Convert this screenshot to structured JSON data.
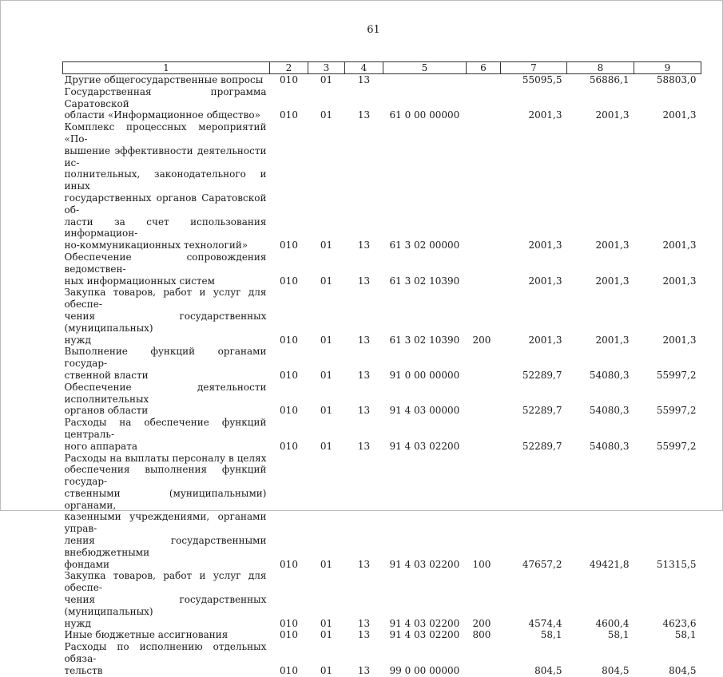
{
  "page_number": "61",
  "table": {
    "headers": [
      "1",
      "2",
      "3",
      "4",
      "5",
      "6",
      "7",
      "8",
      "9"
    ],
    "rows": [
      {
        "lines": [
          "Другие общегосударственные вопросы"
        ],
        "c2": "010",
        "c3": "01",
        "c4": "13",
        "c5": "",
        "c6": "",
        "c7": "55095,5",
        "c8": "56886,1",
        "c9": "58803,0"
      },
      {
        "lines": [
          "Государственная программа Саратовской",
          "области «Информационное общество»"
        ],
        "c2": "010",
        "c3": "01",
        "c4": "13",
        "c5": "61 0 00 00000",
        "c6": "",
        "c7": "2001,3",
        "c8": "2001,3",
        "c9": "2001,3"
      },
      {
        "lines": [
          "Комплекс процессных мероприятий «По-",
          "вышение эффективности деятельности ис-",
          "полнительных, законодательного и иных",
          "государственных органов Саратовской об-",
          "ласти за счет использования информацион-",
          "но-коммуникационных технологий»"
        ],
        "c2": "010",
        "c3": "01",
        "c4": "13",
        "c5": "61 3 02 00000",
        "c6": "",
        "c7": "2001,3",
        "c8": "2001,3",
        "c9": "2001,3"
      },
      {
        "lines": [
          "Обеспечение сопровождения ведомствен-",
          "ных информационных систем"
        ],
        "c2": "010",
        "c3": "01",
        "c4": "13",
        "c5": "61 3 02 10390",
        "c6": "",
        "c7": "2001,3",
        "c8": "2001,3",
        "c9": "2001,3"
      },
      {
        "lines": [
          "Закупка товаров, работ и услуг для обеспе-",
          "чения государственных (муниципальных)",
          "нужд"
        ],
        "c2": "010",
        "c3": "01",
        "c4": "13",
        "c5": "61 3 02 10390",
        "c6": "200",
        "c7": "2001,3",
        "c8": "2001,3",
        "c9": "2001,3"
      },
      {
        "lines": [
          "Выполнение функций органами государ-",
          "ственной власти"
        ],
        "c2": "010",
        "c3": "01",
        "c4": "13",
        "c5": "91 0 00 00000",
        "c6": "",
        "c7": "52289,7",
        "c8": "54080,3",
        "c9": "55997,2"
      },
      {
        "lines": [
          "Обеспечение деятельности исполнительных",
          "органов области"
        ],
        "c2": "010",
        "c3": "01",
        "c4": "13",
        "c5": "91 4 03 00000",
        "c6": "",
        "c7": "52289,7",
        "c8": "54080,3",
        "c9": "55997,2"
      },
      {
        "lines": [
          "Расходы на обеспечение функций централь-",
          "ного аппарата"
        ],
        "c2": "010",
        "c3": "01",
        "c4": "13",
        "c5": "91 4 03 02200",
        "c6": "",
        "c7": "52289,7",
        "c8": "54080,3",
        "c9": "55997,2"
      },
      {
        "lines": [
          "Расходы на выплаты персоналу в целях",
          "обеспечения выполнения функций государ-",
          "ственными (муниципальными) органами,",
          "казенными учреждениями, органами управ-",
          "ления государственными внебюджетными",
          "фондами"
        ],
        "c2": "010",
        "c3": "01",
        "c4": "13",
        "c5": "91 4 03 02200",
        "c6": "100",
        "c7": "47657,2",
        "c8": "49421,8",
        "c9": "51315,5"
      },
      {
        "lines": [
          "Закупка товаров, работ и услуг для обеспе-",
          "чения государственных (муниципальных)",
          "нужд"
        ],
        "c2": "010",
        "c3": "01",
        "c4": "13",
        "c5": "91 4 03 02200",
        "c6": "200",
        "c7": "4574,4",
        "c8": "4600,4",
        "c9": "4623,6"
      },
      {
        "lines": [
          "Иные бюджетные ассигнования"
        ],
        "c2": "010",
        "c3": "01",
        "c4": "13",
        "c5": "91 4 03 02200",
        "c6": "800",
        "c7": "58,1",
        "c8": "58,1",
        "c9": "58,1"
      },
      {
        "lines": [
          "Расходы по исполнению отдельных обяза-",
          "тельств"
        ],
        "c2": "010",
        "c3": "01",
        "c4": "13",
        "c5": "99 0 00 00000",
        "c6": "",
        "c7": "804,5",
        "c8": "804,5",
        "c9": "804,5"
      }
    ]
  }
}
